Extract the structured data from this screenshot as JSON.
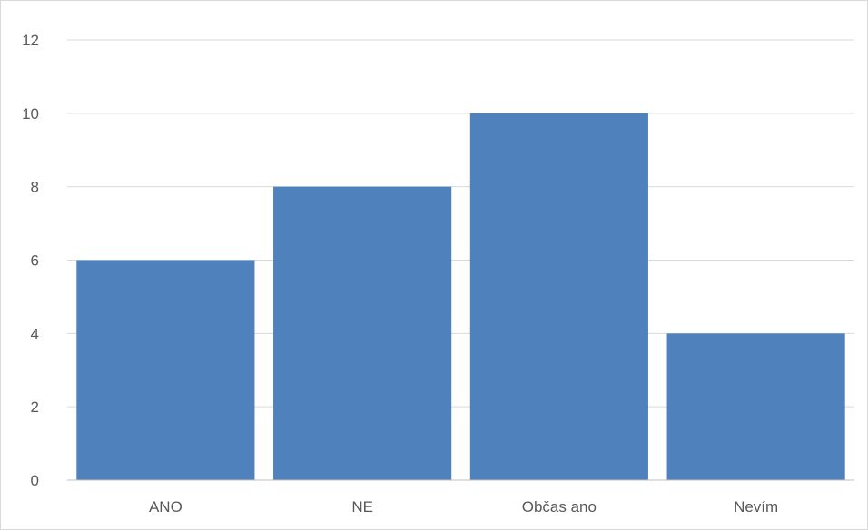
{
  "chart_data": {
    "type": "bar",
    "categories": [
      "ANO",
      "NE",
      "Občas ano",
      "Nevím"
    ],
    "values": [
      6,
      8,
      10,
      4
    ],
    "ylim": [
      0,
      12
    ],
    "yticks": [
      0,
      2,
      4,
      6,
      8,
      10,
      12
    ],
    "grid": true,
    "bar_color": "#4f81bd",
    "grid_color": "#d9d9d9",
    "axis_color": "#bfbfbf",
    "text_color": "#595959"
  }
}
